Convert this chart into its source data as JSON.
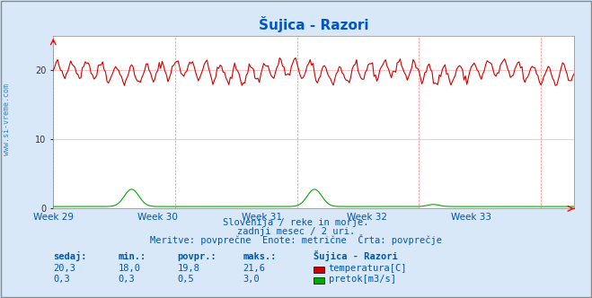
{
  "title": "Šujica - Razori",
  "bg_color": "#d8e8f8",
  "plot_bg_color": "#ffffff",
  "border_color": "#aaaaaa",
  "grid_color": "#ffaaaa",
  "x_tick_labels": [
    "Week 29",
    "Week 30",
    "Week 31",
    "Week 32",
    "Week 33"
  ],
  "x_tick_positions": [
    0,
    84,
    168,
    252,
    336
  ],
  "n_points": 360,
  "weeks": 5,
  "temp_mean": 19.8,
  "temp_min": 18.0,
  "temp_max": 21.6,
  "temp_current": 20.3,
  "flow_mean": 0.5,
  "flow_min": 0.3,
  "flow_max": 3.0,
  "flow_current": 0.3,
  "ylim": [
    0,
    25
  ],
  "yticks": [
    0,
    10,
    20
  ],
  "temp_color": "#cc0000",
  "flow_color": "#00aa00",
  "height_color": "#0000cc",
  "vline_color": "#ff4444",
  "watermark": "www.si-vreme.com",
  "footer_line1": "Slovenija / reke in morje.",
  "footer_line2": "zadnji mesec / 2 uri.",
  "footer_line3": "Meritve: povprečne  Enote: metrične  Črta: povprečje",
  "table_header": [
    "sedaj:",
    "min.:",
    "povpr.:",
    "maks.:",
    "Šujica - Razori"
  ],
  "table_row1": [
    "20,3",
    "18,0",
    "19,8",
    "21,6",
    "temperatura[C]"
  ],
  "table_row2": [
    "0,3",
    "0,3",
    "0,5",
    "3,0",
    "pretok[m3/s]"
  ],
  "text_color": "#0055aa",
  "title_color": "#0055cc"
}
